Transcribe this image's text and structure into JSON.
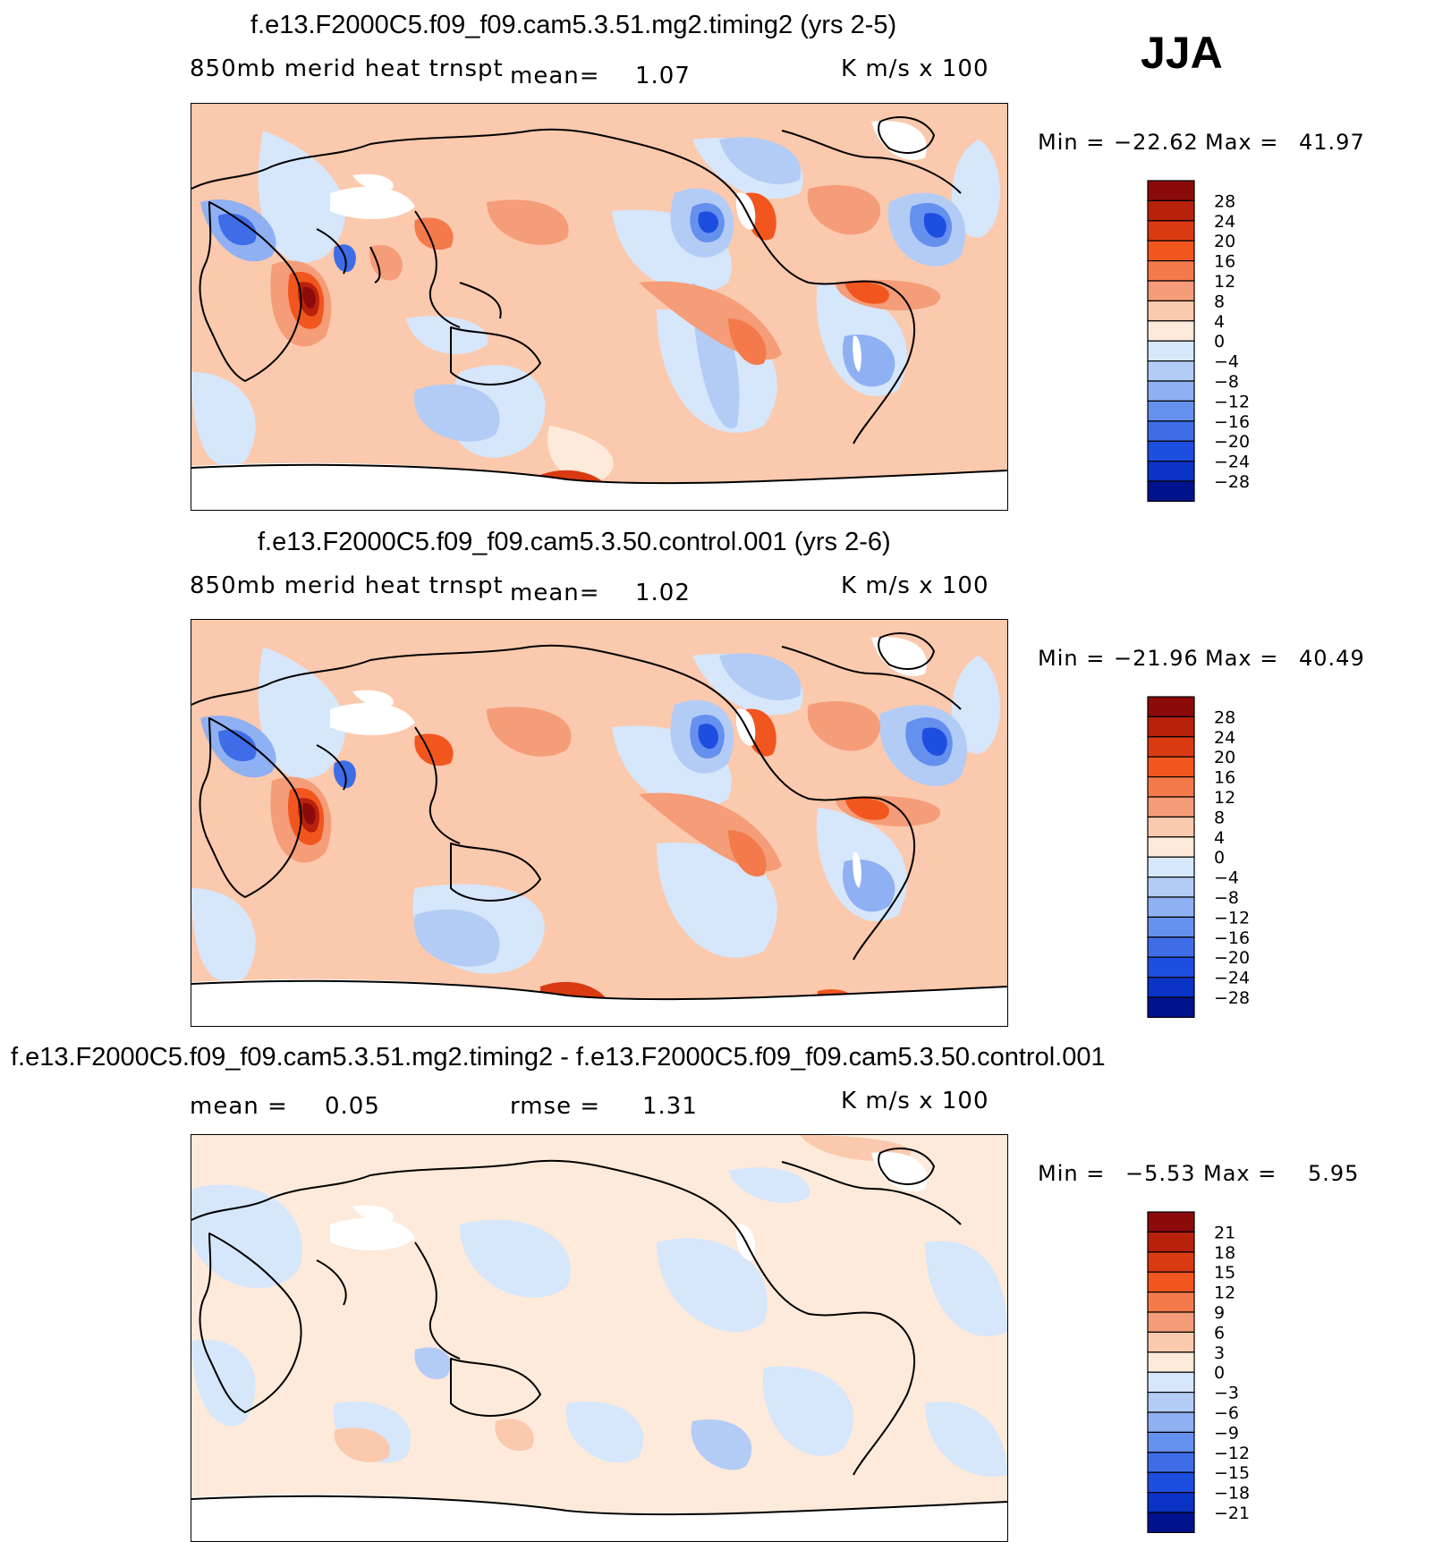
{
  "season": "JJA",
  "panels": [
    {
      "title": "f.e13.F2000C5.f09_f09.cam5.3.51.mg2.timing2 (yrs 2-5)",
      "variable": "850mb  merid  heat  trnspt",
      "mean_label": "mean=",
      "mean_value": "1.07",
      "units": "K  m/s  x  100",
      "min_label": "Min  =",
      "min_value": "−22.62",
      "max_label": "Max  =",
      "max_value": "41.97",
      "colorbar_labels": [
        "28",
        "24",
        "20",
        "16",
        "12",
        "8",
        "4",
        "0",
        "−4",
        "−8",
        "−12",
        "−16",
        "−20",
        "−24",
        "−28"
      ]
    },
    {
      "title": "f.e13.F2000C5.f09_f09.cam5.3.50.control.001 (yrs 2-6)",
      "variable": "850mb  merid  heat  trnspt",
      "mean_label": "mean=",
      "mean_value": "1.02",
      "units": "K  m/s  x  100",
      "min_label": "Min  =",
      "min_value": "−21.96",
      "max_label": "Max  =",
      "max_value": "40.49",
      "colorbar_labels": [
        "28",
        "24",
        "20",
        "16",
        "12",
        "8",
        "4",
        "0",
        "−4",
        "−8",
        "−12",
        "−16",
        "−20",
        "−24",
        "−28"
      ]
    },
    {
      "title": "f.e13.F2000C5.f09_f09.cam5.3.51.mg2.timing2 - f.e13.F2000C5.f09_f09.cam5.3.50.control.001",
      "mean_label": "mean =",
      "mean_value": "0.05",
      "rmse_label": "rmse =",
      "rmse_value": "1.31",
      "units": "K  m/s  x  100",
      "min_label": "Min  =",
      "min_value": "−5.53",
      "max_label": "Max  =",
      "max_value": "5.95",
      "colorbar_labels": [
        "21",
        "18",
        "15",
        "12",
        "9",
        "6",
        "3",
        "0",
        "−3",
        "−6",
        "−9",
        "−12",
        "−15",
        "−18",
        "−21"
      ]
    }
  ],
  "colors": {
    "palette": [
      "#8b0a0a",
      "#b8210c",
      "#d93a12",
      "#f2561f",
      "#f47a4c",
      "#f59c78",
      "#fbc9ad",
      "#fdeadb",
      "#d6e6fb",
      "#b3ccf6",
      "#8fb0f2",
      "#6690ee",
      "#3f6de8",
      "#1e4ee0",
      "#0a32c5",
      "#00138d"
    ]
  },
  "chart_data": [
    {
      "type": "heatmap",
      "title": "f.e13.F2000C5.f09_f09.cam5.3.51.mg2.timing2 (yrs 2-5)",
      "field": "850mb merid heat trnspt",
      "units": "K m/s x 100",
      "mean": 1.07,
      "min": -22.62,
      "max": 41.97,
      "contour_levels": [
        -28,
        -24,
        -20,
        -16,
        -12,
        -8,
        -4,
        0,
        4,
        8,
        12,
        16,
        20,
        24,
        28
      ]
    },
    {
      "type": "heatmap",
      "title": "f.e13.F2000C5.f09_f09.cam5.3.50.control.001 (yrs 2-6)",
      "field": "850mb merid heat trnspt",
      "units": "K m/s x 100",
      "mean": 1.02,
      "min": -21.96,
      "max": 40.49,
      "contour_levels": [
        -28,
        -24,
        -20,
        -16,
        -12,
        -8,
        -4,
        0,
        4,
        8,
        12,
        16,
        20,
        24,
        28
      ]
    },
    {
      "type": "heatmap",
      "title": "f.e13.F2000C5.f09_f09.cam5.3.51.mg2.timing2 - f.e13.F2000C5.f09_f09.cam5.3.50.control.001",
      "units": "K m/s x 100",
      "mean": 0.05,
      "rmse": 1.31,
      "min": -5.53,
      "max": 5.95,
      "contour_levels": [
        -21,
        -18,
        -15,
        -12,
        -9,
        -6,
        -3,
        0,
        3,
        6,
        9,
        12,
        15,
        18,
        21
      ]
    }
  ]
}
